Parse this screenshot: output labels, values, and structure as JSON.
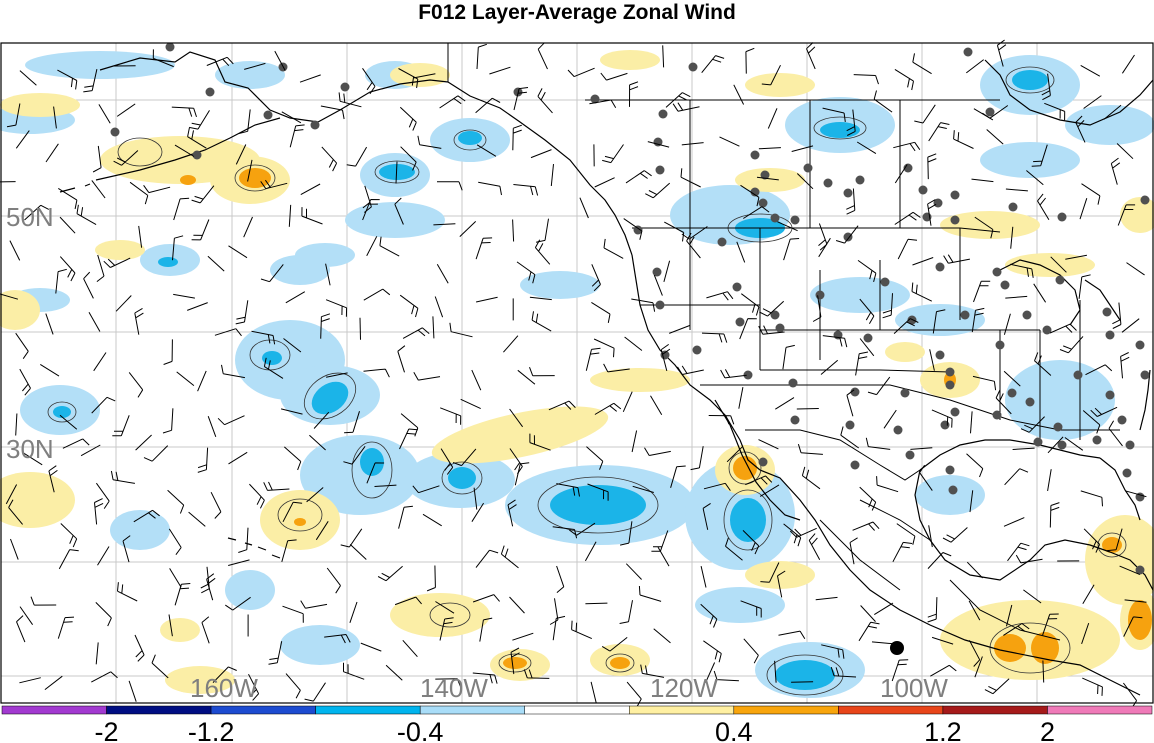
{
  "title": "F012 Layer-Average Zonal Wind",
  "map": {
    "lat_labels": [
      "50N",
      "30N"
    ],
    "lon_labels": [
      "160W",
      "140W",
      "120W",
      "100W"
    ],
    "label_color": "#7f7f7f"
  },
  "colorbar": {
    "colors": [
      "#a23ad0",
      "#000e82",
      "#1d4bd0",
      "#00b4ee",
      "#a9ddf8",
      "#ffffff",
      "#fff0a2",
      "#f8a50d",
      "#e8451a",
      "#a51a1a",
      "#ef7ab8"
    ],
    "tick_labels": [
      "-2",
      "-1.2",
      "-0.4",
      "0.4",
      "1.2",
      "2"
    ]
  },
  "legend_colors": {
    "light_blue": "#b3dff7",
    "mid_blue": "#1bb4e8",
    "light_yellow": "#fbeea6",
    "orange": "#f6a20f"
  }
}
